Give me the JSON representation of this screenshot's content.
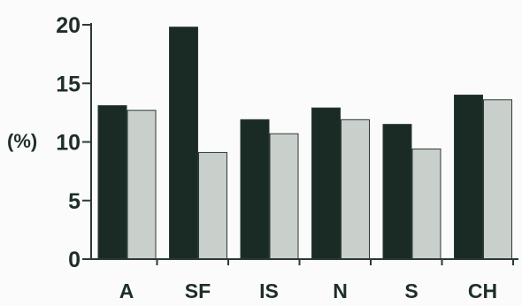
{
  "chart_data": {
    "type": "bar",
    "categories": [
      "A",
      "SF",
      "IS",
      "N",
      "S",
      "CH"
    ],
    "series": [
      {
        "values": [
          13.1,
          19.8,
          11.9,
          12.9,
          11.5,
          14.0
        ]
      },
      {
        "values": [
          12.7,
          9.1,
          10.7,
          11.9,
          9.4,
          13.6
        ]
      }
    ],
    "ylabel": "(%)",
    "ylim": [
      0,
      20
    ],
    "yticks": [
      "0",
      "5",
      "10",
      "15",
      "20"
    ],
    "grid": false,
    "colors": {
      "series_1": "#1a2a24",
      "series_2": "#c9cfcb",
      "axis": "#2a3a34",
      "text": "#1e2e28",
      "background": "#fbfbfb"
    }
  }
}
